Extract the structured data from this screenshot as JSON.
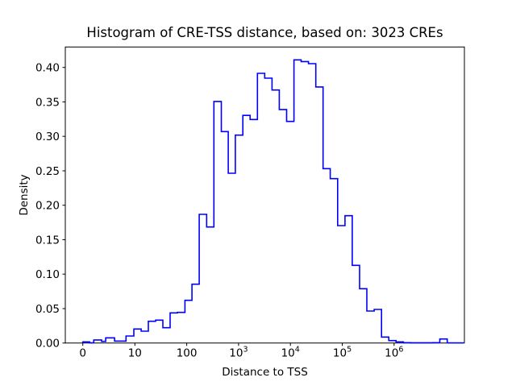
{
  "figure": {
    "background": "#ffffff",
    "frame_color": "#000000"
  },
  "chart_data": {
    "type": "bar",
    "subtype": "step-histogram",
    "title": "Histogram of CRE-TSS distance, based on: 3023 CREs",
    "xlabel": "Distance to TSS",
    "ylabel": "Density",
    "line_color": "#0000ff",
    "x_scale": "symlog",
    "x_linthresh": 10,
    "ylim": [
      0,
      0.43
    ],
    "grid": false,
    "legend": "none",
    "x_ticks": [
      {
        "value": 0,
        "label": "0"
      },
      {
        "value": 10,
        "label": "10"
      },
      {
        "value": 100,
        "label": "100"
      },
      {
        "value": 1000,
        "label": "10^3"
      },
      {
        "value": 10000,
        "label": "10^4"
      },
      {
        "value": 100000,
        "label": "10^5"
      },
      {
        "value": 1000000,
        "label": "10^6"
      }
    ],
    "y_ticks": [
      {
        "value": 0.0,
        "label": "0.00"
      },
      {
        "value": 0.05,
        "label": "0.05"
      },
      {
        "value": 0.1,
        "label": "0.10"
      },
      {
        "value": 0.15,
        "label": "0.15"
      },
      {
        "value": 0.2,
        "label": "0.20"
      },
      {
        "value": 0.25,
        "label": "0.25"
      },
      {
        "value": 0.3,
        "label": "0.30"
      },
      {
        "value": 0.35,
        "label": "0.35"
      },
      {
        "value": 0.4,
        "label": "0.40"
      }
    ],
    "bins": [
      {
        "left": 0,
        "right": 1.3,
        "density": 0.0016
      },
      {
        "left": 1.3,
        "right": 2.1,
        "density": 0.0004
      },
      {
        "left": 2.1,
        "right": 3.6,
        "density": 0.0045
      },
      {
        "left": 3.6,
        "right": 4.4,
        "density": 0.0023
      },
      {
        "left": 4.4,
        "right": 6.1,
        "density": 0.0075
      },
      {
        "left": 6.1,
        "right": 8.3,
        "density": 0.0028
      },
      {
        "left": 8.3,
        "right": 9.8,
        "density": 0.0102
      },
      {
        "left": 9.8,
        "right": 13.2,
        "density": 0.0203
      },
      {
        "left": 13.2,
        "right": 18.2,
        "density": 0.0172
      },
      {
        "left": 18.2,
        "right": 25.1,
        "density": 0.0316
      },
      {
        "left": 25.1,
        "right": 34.7,
        "density": 0.0332
      },
      {
        "left": 34.7,
        "right": 47.9,
        "density": 0.0222
      },
      {
        "left": 47.9,
        "right": 66.1,
        "density": 0.0437
      },
      {
        "left": 66.1,
        "right": 92.4,
        "density": 0.0444
      },
      {
        "left": 92.4,
        "right": 126,
        "density": 0.062
      },
      {
        "left": 126,
        "right": 174,
        "density": 0.0854
      },
      {
        "left": 174,
        "right": 242,
        "density": 0.1868
      },
      {
        "left": 242,
        "right": 334,
        "density": 0.1684
      },
      {
        "left": 334,
        "right": 464,
        "density": 0.3506
      },
      {
        "left": 464,
        "right": 633,
        "density": 0.3069
      },
      {
        "left": 633,
        "right": 867,
        "density": 0.2464
      },
      {
        "left": 867,
        "right": 1210,
        "density": 0.3018
      },
      {
        "left": 1210,
        "right": 1670,
        "density": 0.3304
      },
      {
        "left": 1670,
        "right": 2310,
        "density": 0.3244
      },
      {
        "left": 2310,
        "right": 3190,
        "density": 0.3915
      },
      {
        "left": 3190,
        "right": 4420,
        "density": 0.3845
      },
      {
        "left": 4420,
        "right": 6110,
        "density": 0.3673
      },
      {
        "left": 6110,
        "right": 8440,
        "density": 0.3389
      },
      {
        "left": 8440,
        "right": 11700,
        "density": 0.3216
      },
      {
        "left": 11700,
        "right": 16100,
        "density": 0.411
      },
      {
        "left": 16100,
        "right": 22300,
        "density": 0.4085
      },
      {
        "left": 22300,
        "right": 30900,
        "density": 0.4055
      },
      {
        "left": 30900,
        "right": 42700,
        "density": 0.3717
      },
      {
        "left": 42700,
        "right": 58600,
        "density": 0.2531
      },
      {
        "left": 58600,
        "right": 81600,
        "density": 0.2386
      },
      {
        "left": 81600,
        "right": 113000,
        "density": 0.1704
      },
      {
        "left": 113000,
        "right": 156000,
        "density": 0.1848
      },
      {
        "left": 156000,
        "right": 216000,
        "density": 0.1127
      },
      {
        "left": 216000,
        "right": 298000,
        "density": 0.0788
      },
      {
        "left": 298000,
        "right": 413000,
        "density": 0.0464
      },
      {
        "left": 413000,
        "right": 571000,
        "density": 0.0488
      },
      {
        "left": 571000,
        "right": 789000,
        "density": 0.0087
      },
      {
        "left": 789000,
        "right": 1090000,
        "density": 0.0035
      },
      {
        "left": 1090000,
        "right": 1510000,
        "density": 0.0016
      },
      {
        "left": 1510000,
        "right": 2090000,
        "density": 0.0005
      },
      {
        "left": 2090000,
        "right": 2890000,
        "density": 0.0004
      },
      {
        "left": 2890000,
        "right": 3990000,
        "density": 0.0004
      },
      {
        "left": 3990000,
        "right": 5520000,
        "density": 0.0003
      },
      {
        "left": 5520000,
        "right": 7630000,
        "density": 0.0005
      },
      {
        "left": 7630000,
        "right": 10600000,
        "density": 0.0059
      },
      {
        "left": 10600000,
        "right": 21400000,
        "density": 0.0002
      }
    ]
  }
}
